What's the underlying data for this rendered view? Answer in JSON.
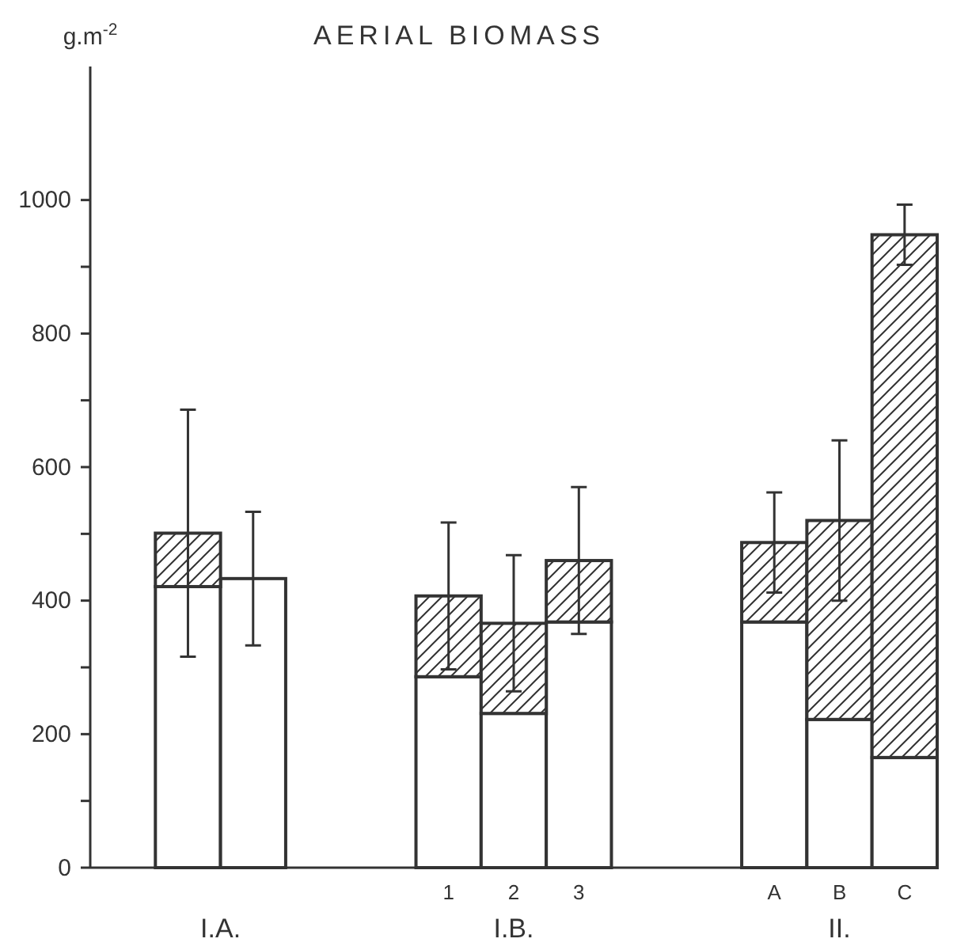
{
  "chart_data": {
    "type": "bar",
    "title": "AERIAL BIOMASS",
    "ylabel": "g.m$^{-2}$",
    "stacked": true,
    "categories": [
      null,
      null,
      null,
      null,
      null,
      "1",
      "2",
      "3",
      null,
      null,
      "A",
      "B",
      "C"
    ],
    "series": [
      {
        "color": "#ffffff",
        "values": [
          null,
          421,
          433,
          null,
          null,
          286,
          231,
          368,
          null,
          null,
          368,
          222,
          165
        ]
      },
      {
        "color": "#333333",
        "values": [
          null,
          80,
          0,
          null,
          null,
          121,
          135,
          92,
          null,
          null,
          119,
          298,
          783
        ],
        "errors": [
          null,
          185,
          100,
          null,
          null,
          110,
          102,
          110,
          null,
          null,
          75,
          120,
          45
        ]
      }
    ],
    "ylim": [
      0,
      1200
    ],
    "yticks": [
      0,
      {
        "value": 100,
        "label": null
      },
      200,
      {
        "value": 300,
        "label": null
      },
      400,
      {
        "value": 500,
        "label": null
      },
      600,
      {
        "value": 700,
        "label": null
      },
      800,
      {
        "value": 900,
        "label": null
      },
      1000
    ],
    "annotations": [
      "I.A.",
      "I.B.",
      "II."
    ]
  }
}
